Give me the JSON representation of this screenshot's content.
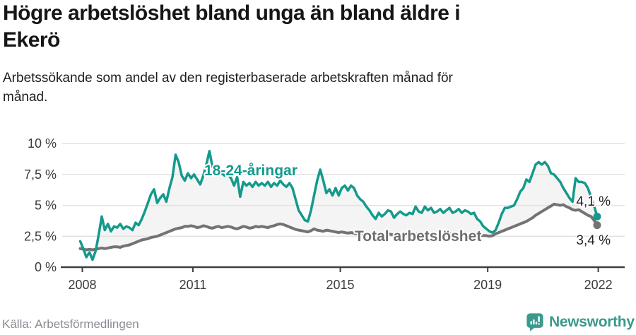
{
  "header": {
    "title_lines": [
      "Högre arbetslöshet bland unga än bland äldre i",
      "Ekerö"
    ],
    "subtitle_lines": [
      "Arbetssökande som andel av den registerbaserade arbetskraften månad för",
      "månad."
    ]
  },
  "footer": {
    "source": "Källa: Arbetsförmedlingen",
    "brand": "Newsworthy"
  },
  "colors": {
    "youth_line": "#149a8c",
    "total_line": "#737373",
    "total_label": "#6e6e6e",
    "area_fill": "#f4f4f4",
    "gridline": "#e2e2e2",
    "axis": "#3f3f3f",
    "tick_label": "#3b3b3b",
    "end_value_label": "#222222",
    "brand_teal": "#38998c"
  },
  "chart_data": {
    "type": "line",
    "title": "Högre arbetslöshet bland unga än bland äldre i Ekerö",
    "subtitle": "Arbetssökande som andel av den registerbaserade arbetskraften månad för månad.",
    "xlabel": "",
    "ylabel": "",
    "x_unit": "month",
    "x_start": "2008-01",
    "x_end": "2022-01",
    "grid": true,
    "legend_position": "inline-labels",
    "x_tick_years": [
      2008,
      2011,
      2015,
      2019,
      2022
    ],
    "x_tick_labels": [
      "2008",
      "2011",
      "2015",
      "2019",
      "2022"
    ],
    "y_tick_values": [
      0,
      2.5,
      5,
      7.5,
      10
    ],
    "y_tick_labels": [
      "0 %",
      "2,5 %",
      "5 %",
      "7,5 %",
      "10 %"
    ],
    "ylim": [
      0,
      10.5
    ],
    "area_between_series": true,
    "series": [
      {
        "name": "18-24-åringar",
        "color": "#149a8c",
        "end_value": 4.1,
        "end_label": "4,1 %",
        "values": [
          2.1,
          1.5,
          0.8,
          1.2,
          0.6,
          1.3,
          2.6,
          4.1,
          3.0,
          3.5,
          2.9,
          3.3,
          3.2,
          3.5,
          3.1,
          3.3,
          3.2,
          3.0,
          3.6,
          3.4,
          3.9,
          4.5,
          5.2,
          5.9,
          6.3,
          5.2,
          5.6,
          5.9,
          5.3,
          6.4,
          7.3,
          9.1,
          8.5,
          7.4,
          7.0,
          7.6,
          7.2,
          7.5,
          7.1,
          6.7,
          7.4,
          8.3,
          9.4,
          8.1,
          7.9,
          8.2,
          7.6,
          7.4,
          7.5,
          7.2,
          6.6,
          7.3,
          5.7,
          6.9,
          6.6,
          6.8,
          6.5,
          6.9,
          6.6,
          6.8,
          6.6,
          6.9,
          6.5,
          6.8,
          6.6,
          7.0,
          6.7,
          6.5,
          6.8,
          6.4,
          5.5,
          4.6,
          4.2,
          3.8,
          3.7,
          4.6,
          5.8,
          7.0,
          7.9,
          7.0,
          6.0,
          6.3,
          5.8,
          6.4,
          5.8,
          6.4,
          6.6,
          6.2,
          6.6,
          6.4,
          5.8,
          5.5,
          5.3,
          4.9,
          4.6,
          4.2,
          3.9,
          4.4,
          4.1,
          4.3,
          4.6,
          4.5,
          4.0,
          4.3,
          4.5,
          4.3,
          4.2,
          4.4,
          4.3,
          4.9,
          4.5,
          4.4,
          4.9,
          4.6,
          4.8,
          4.4,
          4.5,
          4.7,
          4.4,
          4.6,
          4.8,
          4.4,
          4.5,
          4.7,
          4.4,
          4.6,
          4.5,
          4.3,
          4.4,
          3.9,
          3.7,
          3.3,
          3.1,
          2.9,
          2.8,
          3.0,
          3.6,
          4.3,
          4.8,
          4.8,
          4.9,
          5.0,
          5.5,
          6.1,
          6.4,
          7.1,
          6.9,
          7.6,
          8.3,
          8.5,
          8.3,
          8.5,
          8.2,
          7.6,
          7.5,
          7.2,
          6.9,
          6.4,
          6.0,
          5.6,
          5.3,
          7.2,
          6.9,
          6.9,
          6.8,
          6.4,
          5.7,
          5.0,
          4.1
        ]
      },
      {
        "name": "Total arbetslöshet",
        "color": "#737373",
        "end_value": 3.4,
        "end_label": "3,4 %",
        "values": [
          1.5,
          1.45,
          1.4,
          1.45,
          1.4,
          1.45,
          1.5,
          1.55,
          1.5,
          1.55,
          1.6,
          1.65,
          1.65,
          1.6,
          1.7,
          1.75,
          1.8,
          1.9,
          2.0,
          2.1,
          2.2,
          2.25,
          2.3,
          2.4,
          2.45,
          2.5,
          2.6,
          2.7,
          2.8,
          2.9,
          3.0,
          3.1,
          3.15,
          3.2,
          3.3,
          3.3,
          3.35,
          3.3,
          3.2,
          3.25,
          3.35,
          3.3,
          3.2,
          3.15,
          3.25,
          3.3,
          3.2,
          3.25,
          3.3,
          3.25,
          3.15,
          3.1,
          3.2,
          3.3,
          3.25,
          3.15,
          3.2,
          3.3,
          3.25,
          3.3,
          3.25,
          3.2,
          3.3,
          3.35,
          3.45,
          3.5,
          3.45,
          3.35,
          3.25,
          3.15,
          3.05,
          3.0,
          2.95,
          2.9,
          2.85,
          2.95,
          3.1,
          3.0,
          2.95,
          2.9,
          3.0,
          2.95,
          2.9,
          2.85,
          2.8,
          2.85,
          2.8,
          2.75,
          2.8,
          2.75,
          2.7,
          2.75,
          2.7,
          2.65,
          2.7,
          2.65,
          2.6,
          2.65,
          2.6,
          2.65,
          2.7,
          2.65,
          2.6,
          2.65,
          2.6,
          2.65,
          2.7,
          2.65,
          2.6,
          2.65,
          2.7,
          2.65,
          2.6,
          2.65,
          2.7,
          2.65,
          2.6,
          2.65,
          2.6,
          2.65,
          2.7,
          2.65,
          2.6,
          2.65,
          2.6,
          2.65,
          2.6,
          2.55,
          2.6,
          2.55,
          2.6,
          2.55,
          2.55,
          2.5,
          2.55,
          2.7,
          2.8,
          2.9,
          3.0,
          3.1,
          3.2,
          3.3,
          3.4,
          3.5,
          3.6,
          3.7,
          3.85,
          4.0,
          4.2,
          4.35,
          4.5,
          4.65,
          4.8,
          4.95,
          5.1,
          5.05,
          5.0,
          5.05,
          4.9,
          4.8,
          4.65,
          4.6,
          4.65,
          4.5,
          4.35,
          4.2,
          4.1,
          3.8,
          3.4
        ]
      }
    ]
  }
}
